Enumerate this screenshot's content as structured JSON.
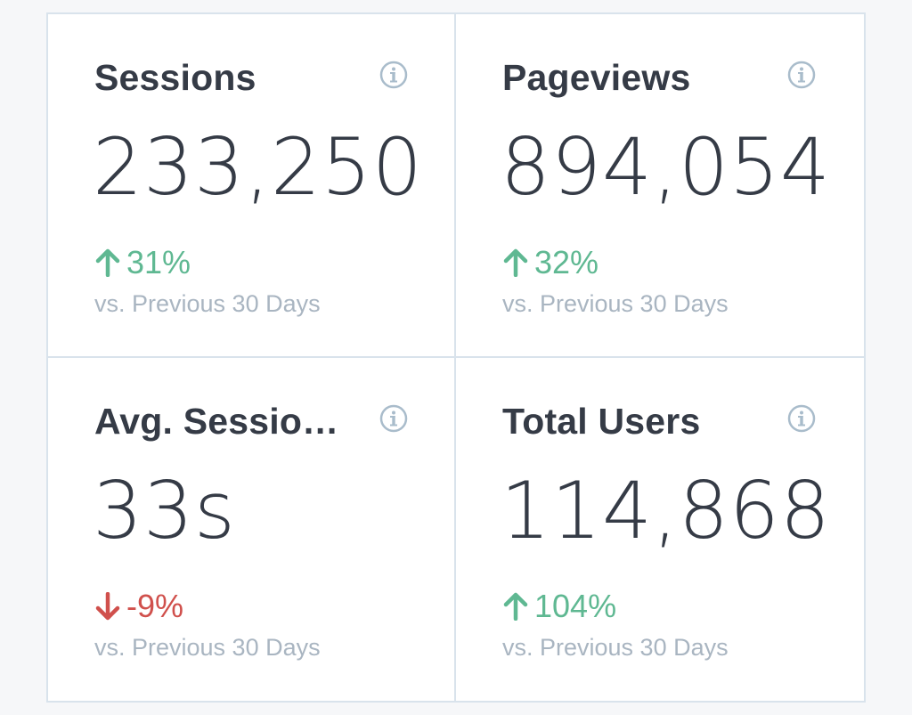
{
  "metrics": [
    {
      "title": "Sessions",
      "value": "233,250",
      "change": "31%",
      "direction": "up",
      "comparison": "vs. Previous 30 Days"
    },
    {
      "title": "Pageviews",
      "value": "894,054",
      "change": "32%",
      "direction": "up",
      "comparison": "vs. Previous 30 Days"
    },
    {
      "title": "Avg. Sessio…",
      "value": "33s",
      "change": "-9%",
      "direction": "down",
      "comparison": "vs. Previous 30 Days"
    },
    {
      "title": "Total Users",
      "value": "114,868",
      "change": "104%",
      "direction": "up",
      "comparison": "vs. Previous 30 Days"
    }
  ],
  "icons": {
    "info": "info-icon",
    "up": "arrow-up-icon",
    "down": "arrow-down-icon"
  },
  "colors": {
    "positive": "#5fb892",
    "negative": "#d0504c",
    "text": "#353b46",
    "muted": "#a9b5c1",
    "border": "#d9e3ec",
    "icon": "#a9bccb"
  }
}
